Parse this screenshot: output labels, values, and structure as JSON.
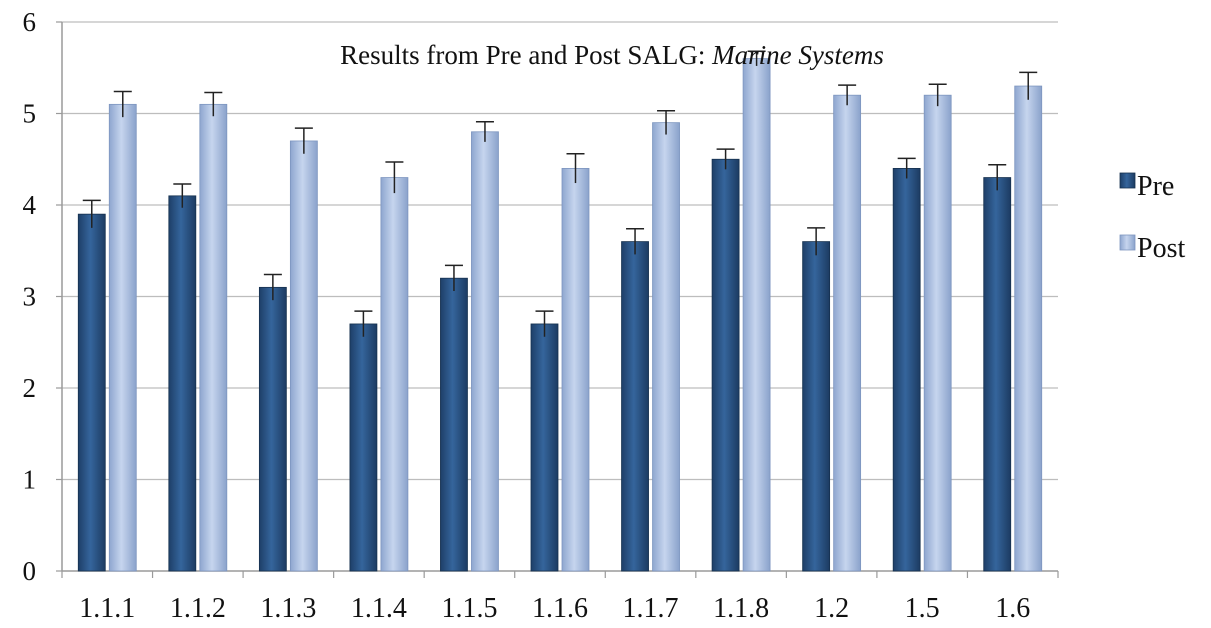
{
  "chart_data": {
    "type": "bar",
    "title": "Results from Pre and Post SALG: ",
    "title_italic": "Marine Systems",
    "xlabel": "",
    "ylabel": "",
    "ylim": [
      0,
      6
    ],
    "yticks": [
      0,
      1,
      2,
      3,
      4,
      5,
      6
    ],
    "grid": true,
    "legend_position": "right",
    "categories": [
      "1.1.1",
      "1.1.2",
      "1.1.3",
      "1.1.4",
      "1.1.5",
      "1.1.6",
      "1.1.7",
      "1.1.8",
      "1.2",
      "1.5",
      "1.6"
    ],
    "series": [
      {
        "name": "Pre",
        "color": "#2a5384",
        "values": [
          3.9,
          4.1,
          3.1,
          2.7,
          3.2,
          2.7,
          3.6,
          4.5,
          3.6,
          4.4,
          4.3
        ],
        "errors": [
          0.15,
          0.13,
          0.14,
          0.14,
          0.14,
          0.14,
          0.14,
          0.11,
          0.15,
          0.11,
          0.14
        ]
      },
      {
        "name": "Post",
        "color": "#a9bddf",
        "values": [
          5.1,
          5.1,
          4.7,
          4.3,
          4.8,
          4.4,
          4.9,
          5.6,
          5.2,
          5.2,
          5.3
        ],
        "errors": [
          0.14,
          0.13,
          0.14,
          0.17,
          0.11,
          0.16,
          0.13,
          0.08,
          0.11,
          0.12,
          0.15
        ]
      }
    ]
  }
}
